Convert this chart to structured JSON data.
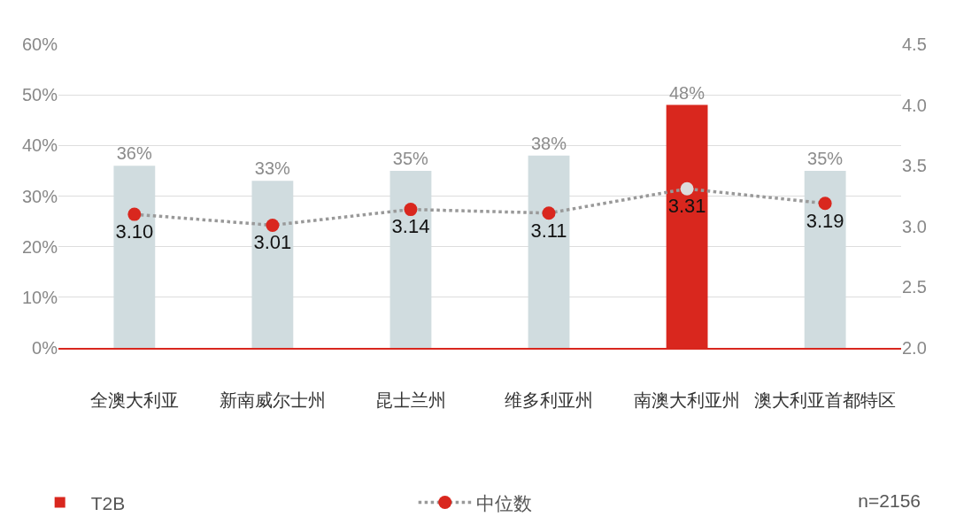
{
  "chart_data": {
    "type": "bar",
    "categories": [
      "全澳大利亚",
      "新南威尔士州",
      "昆士兰州",
      "维多利亚州",
      "南澳大利亚州",
      "澳大利亚首都特区"
    ],
    "series": [
      {
        "name": "T2B",
        "color": "#d9271e",
        "colors": [
          "#d0dcdf",
          "#d0dcdf",
          "#d0dcdf",
          "#d0dcdf",
          "#d9271e",
          "#d0dcdf"
        ],
        "values": [
          36,
          33,
          35,
          38,
          48,
          35
        ],
        "value_labels": [
          "36%",
          "33%",
          "35%",
          "38%",
          "48%",
          "35%"
        ]
      },
      {
        "name": "中位数",
        "type": "line",
        "axis": "y2",
        "color": "#999999",
        "colors": [
          "#d9271e",
          "#d9271e",
          "#d9271e",
          "#d9271e",
          "#dcdcdc",
          "#d9271e"
        ],
        "marker": "circle",
        "line_style": "dotted",
        "values": [
          3.1,
          3.01,
          3.14,
          3.11,
          3.31,
          3.19
        ],
        "value_labels": [
          "3.10",
          "3.01",
          "3.14",
          "3.11",
          "3.31",
          "3.19"
        ]
      }
    ],
    "ylim": [
      0,
      60
    ],
    "yticks": [
      {
        "value": 0,
        "label": "0%"
      },
      {
        "value": 10,
        "label": "10%"
      },
      {
        "value": 20,
        "label": "20%"
      },
      {
        "value": 30,
        "label": "30%"
      },
      {
        "value": 40,
        "label": "40%"
      },
      {
        "value": 50,
        "label": "50%"
      },
      {
        "value": 60,
        "label": "60%"
      }
    ],
    "y2lim": [
      2,
      4.5
    ],
    "y2ticks": [
      {
        "value": 2,
        "label": "2.0"
      },
      2.5,
      {
        "value": 3,
        "label": "3.0"
      },
      3.5,
      {
        "value": 4,
        "label": "4.0"
      },
      4.5
    ],
    "data_labels": true,
    "grid": "y",
    "legend": "bottom",
    "annotations": [
      "n=2156"
    ]
  }
}
